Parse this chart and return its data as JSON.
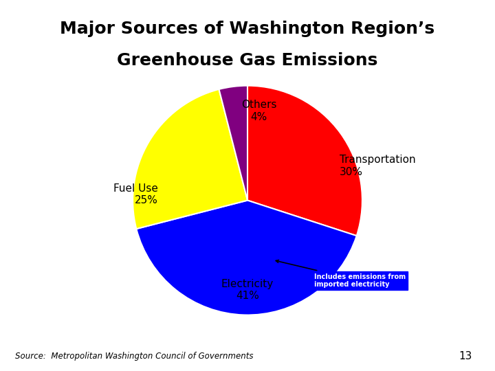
{
  "title_line1": "Major Sources of Washington Region’s",
  "title_line2": "Greenhouse Gas Emissions",
  "title_bg_color": "#8080cc",
  "title_text_color": "#000000",
  "slices": [
    {
      "label": "Transportation",
      "pct": 30,
      "color": "#ff0000"
    },
    {
      "label": "Electricity",
      "pct": 41,
      "color": "#0000ff"
    },
    {
      "label": "Fuel Use",
      "pct": 25,
      "color": "#ffff00"
    },
    {
      "label": "Others",
      "pct": 4,
      "color": "#800080"
    }
  ],
  "annotation_text": "Includes emissions from\nimported electricity",
  "annotation_bg": "#0000ff",
  "annotation_text_color": "#ffffff",
  "source_text": "Source:  Metropolitan Washington Council of Governments",
  "page_number": "13",
  "bg_color": "#ffffff"
}
